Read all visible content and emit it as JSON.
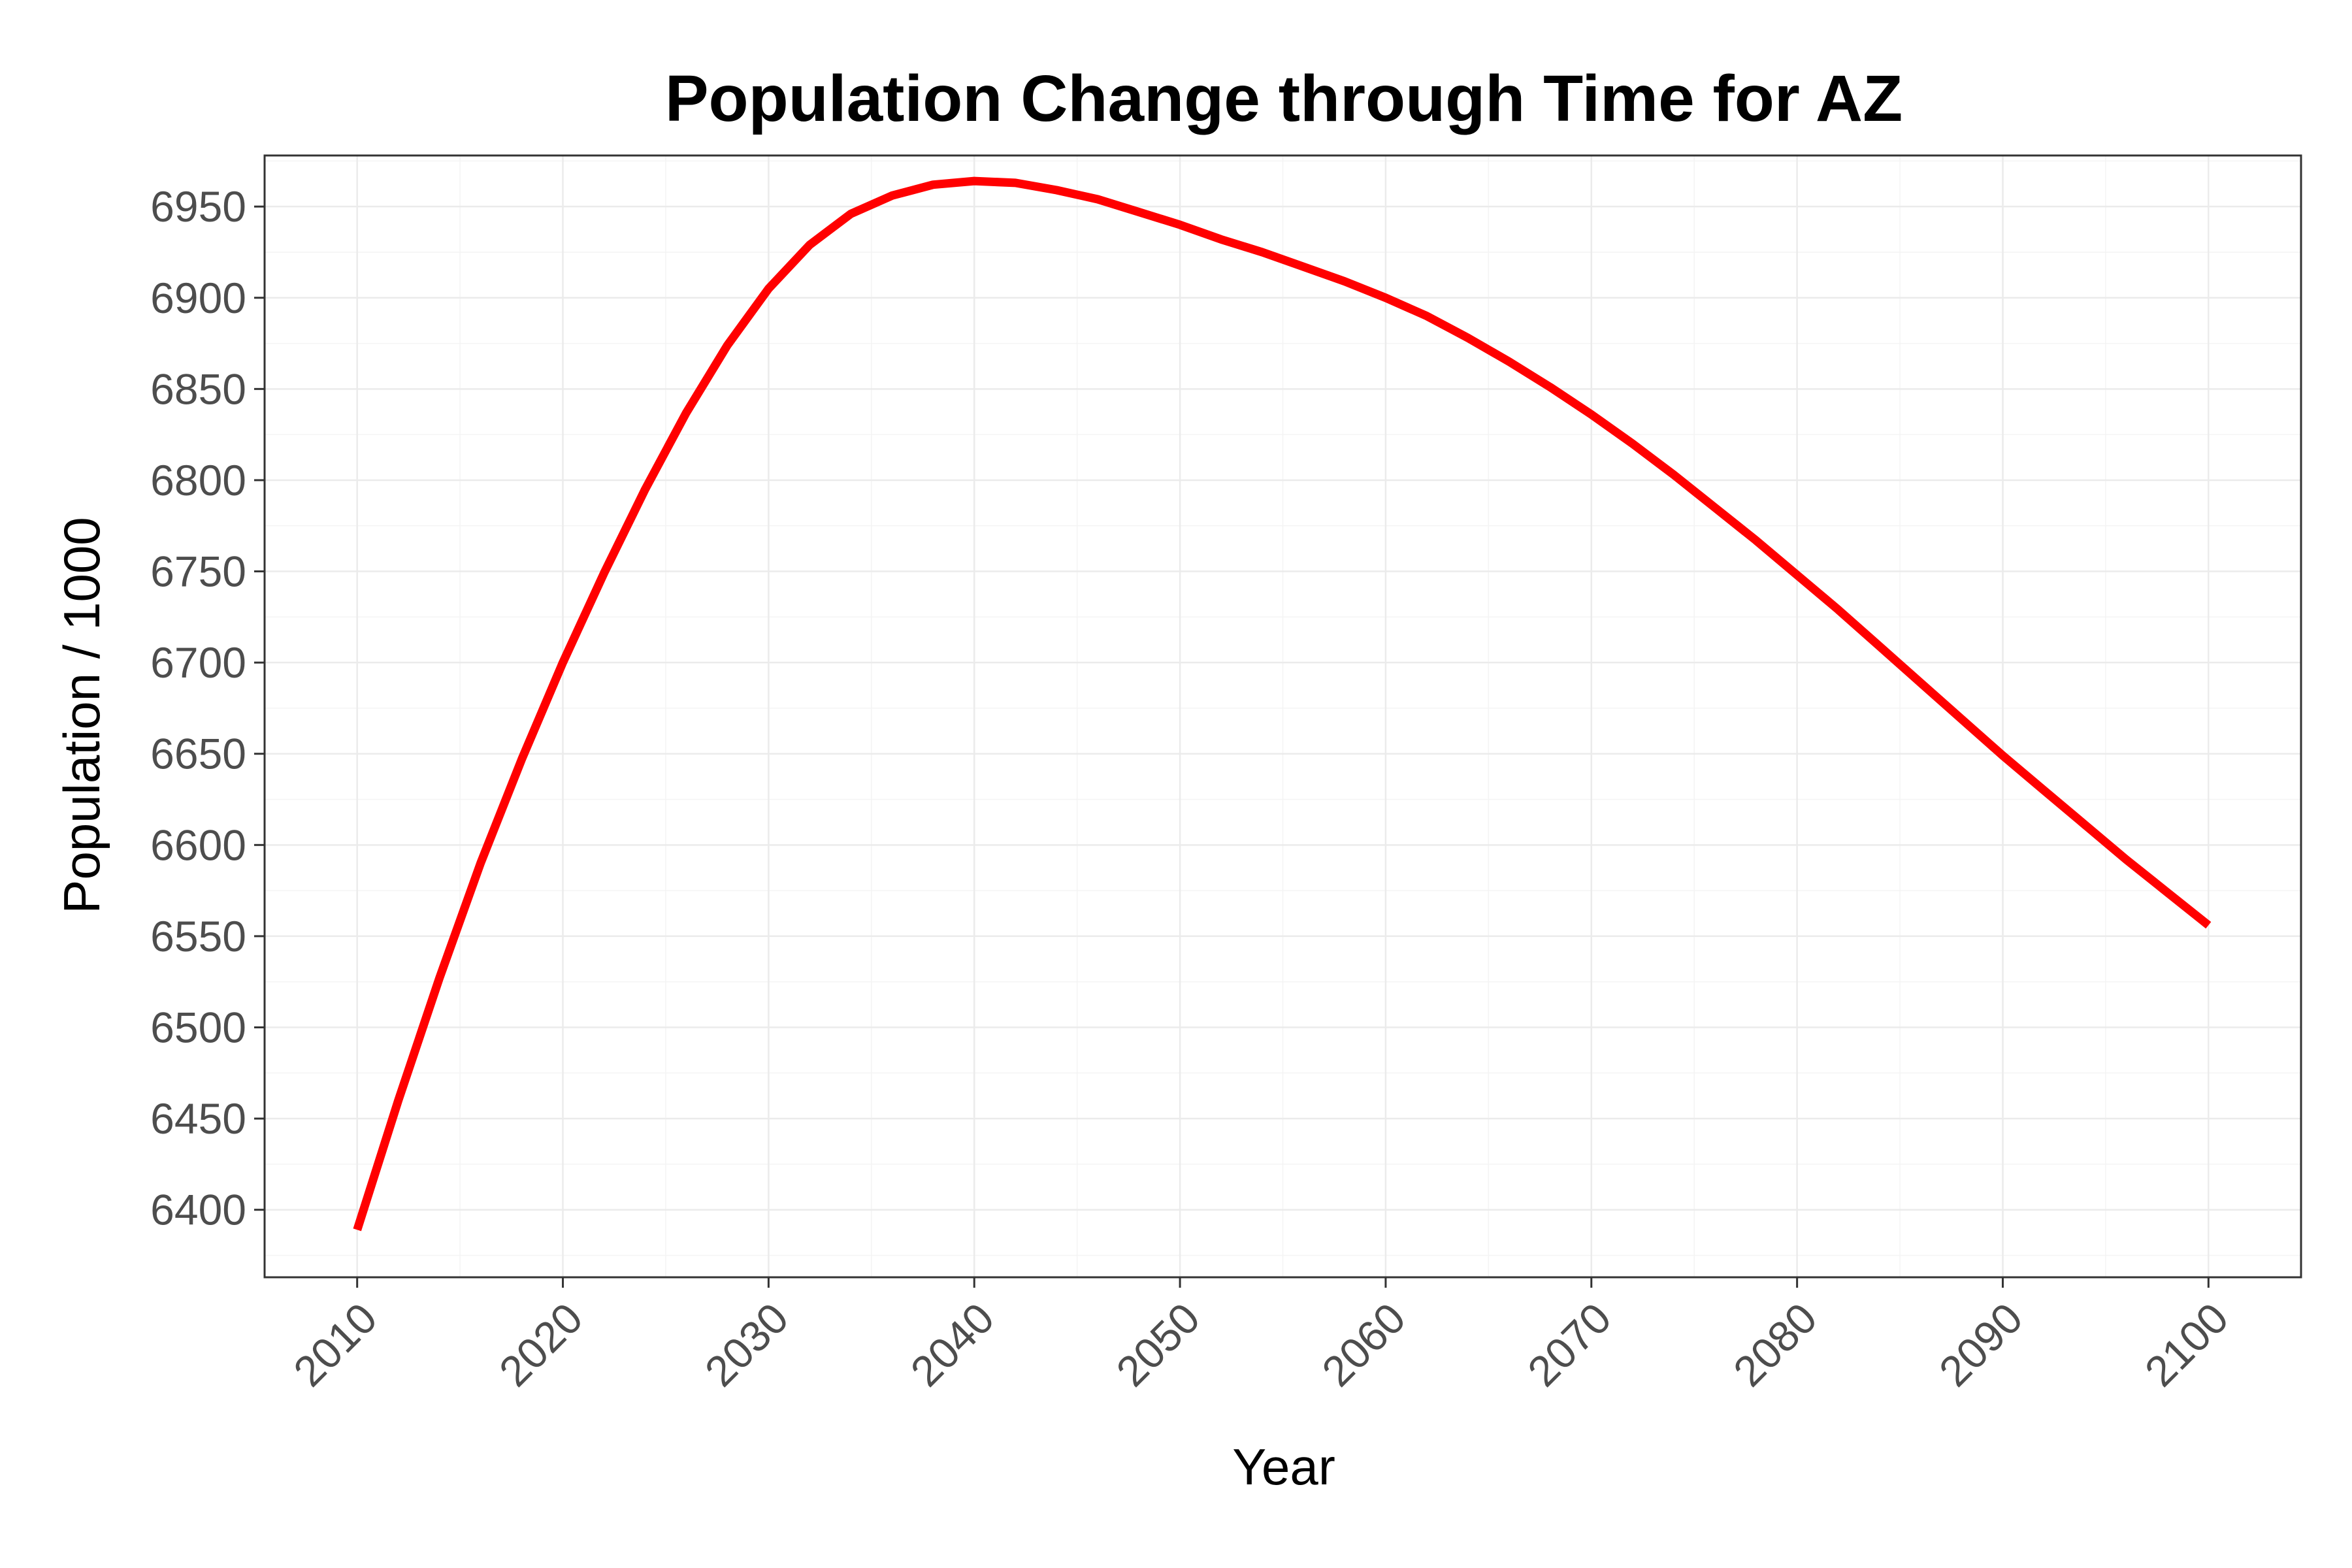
{
  "chart_data": {
    "type": "line",
    "title": "Population Change through Time for AZ",
    "xlabel": "Year",
    "ylabel": "Population / 1000",
    "xlim": [
      2005.5,
      2104.5
    ],
    "ylim": [
      6363,
      6978
    ],
    "grid": true,
    "x_ticks": [
      2010,
      2020,
      2030,
      2040,
      2050,
      2060,
      2070,
      2080,
      2090,
      2100
    ],
    "x_tick_labels": [
      "2010",
      "2020",
      "2030",
      "2040",
      "2050",
      "2060",
      "2070",
      "2080",
      "2090",
      "2100"
    ],
    "y_ticks": [
      6400,
      6450,
      6500,
      6550,
      6600,
      6650,
      6700,
      6750,
      6800,
      6850,
      6900,
      6950
    ],
    "y_tick_labels": [
      "6400",
      "6450",
      "6500",
      "6550",
      "6600",
      "6650",
      "6700",
      "6750",
      "6800",
      "6850",
      "6900",
      "6950"
    ],
    "series": [
      {
        "color": "#ff0000",
        "x": [
          2010,
          2012,
          2014,
          2016,
          2018,
          2020,
          2022,
          2024,
          2026,
          2028,
          2030,
          2032,
          2034,
          2036,
          2038,
          2040,
          2042,
          2044,
          2046,
          2048,
          2050,
          2052,
          2054,
          2056,
          2058,
          2060,
          2062,
          2064,
          2066,
          2068,
          2070,
          2072,
          2074,
          2076,
          2078,
          2080,
          2082,
          2084,
          2086,
          2088,
          2090,
          2092,
          2094,
          2096,
          2098,
          2100
        ],
        "values": [
          6389,
          6460,
          6527,
          6590,
          6647,
          6700,
          6749,
          6795,
          6837,
          6874,
          6905,
          6929,
          6946,
          6956,
          6962,
          6964,
          6963,
          6959,
          6954,
          6947,
          6940,
          6932,
          6925,
          6917,
          6909,
          6900,
          6890,
          6878,
          6865,
          6851,
          6836,
          6820,
          6803,
          6785,
          6767,
          6748,
          6729,
          6709,
          6689,
          6669,
          6649,
          6630,
          6611,
          6592,
          6574,
          6556
        ]
      }
    ]
  }
}
